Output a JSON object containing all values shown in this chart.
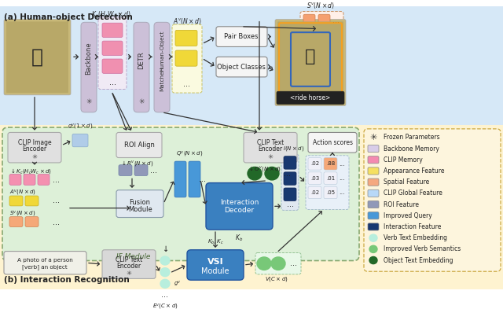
{
  "title_a": "(a) Human-object Detection",
  "title_b": "(b) Interaction Recognition",
  "bg_top_color": "#d6e8f7",
  "bg_bottom_color": "#fef3d0",
  "if_module_color": "#ddf0d8",
  "legend_items": [
    {
      "label": "Frozen Parameters",
      "color": null,
      "shape": "snowflake"
    },
    {
      "label": "Backbone Memory",
      "color": "#d8cce8",
      "shape": "rect"
    },
    {
      "label": "CLIP Memory",
      "color": "#f48ab0",
      "shape": "rect"
    },
    {
      "label": "Appearance Feature",
      "color": "#f5e060",
      "shape": "rect"
    },
    {
      "label": "Spatial Feature",
      "color": "#f5a880",
      "shape": "rect"
    },
    {
      "label": "CLIP Global Feature",
      "color": "#b8d8f8",
      "shape": "rect"
    },
    {
      "label": "ROI Feature",
      "color": "#9098b8",
      "shape": "rect"
    },
    {
      "label": "Improved Query",
      "color": "#4898d8",
      "shape": "rect"
    },
    {
      "label": "Interaction Feature",
      "color": "#183870",
      "shape": "rect"
    },
    {
      "label": "Verb Text Embedding",
      "color": "#b8eedd",
      "shape": "circle"
    },
    {
      "label": "Improved Verb Semantics",
      "color": "#78c878",
      "shape": "circle"
    },
    {
      "label": "Object Text Embedding",
      "color": "#226828",
      "shape": "circle"
    }
  ],
  "score_grid": [
    [
      ".02",
      ".88"
    ],
    [
      ".03",
      ".01"
    ],
    [
      ".02",
      ".05"
    ]
  ],
  "score_highlight": [
    1,
    0
  ]
}
